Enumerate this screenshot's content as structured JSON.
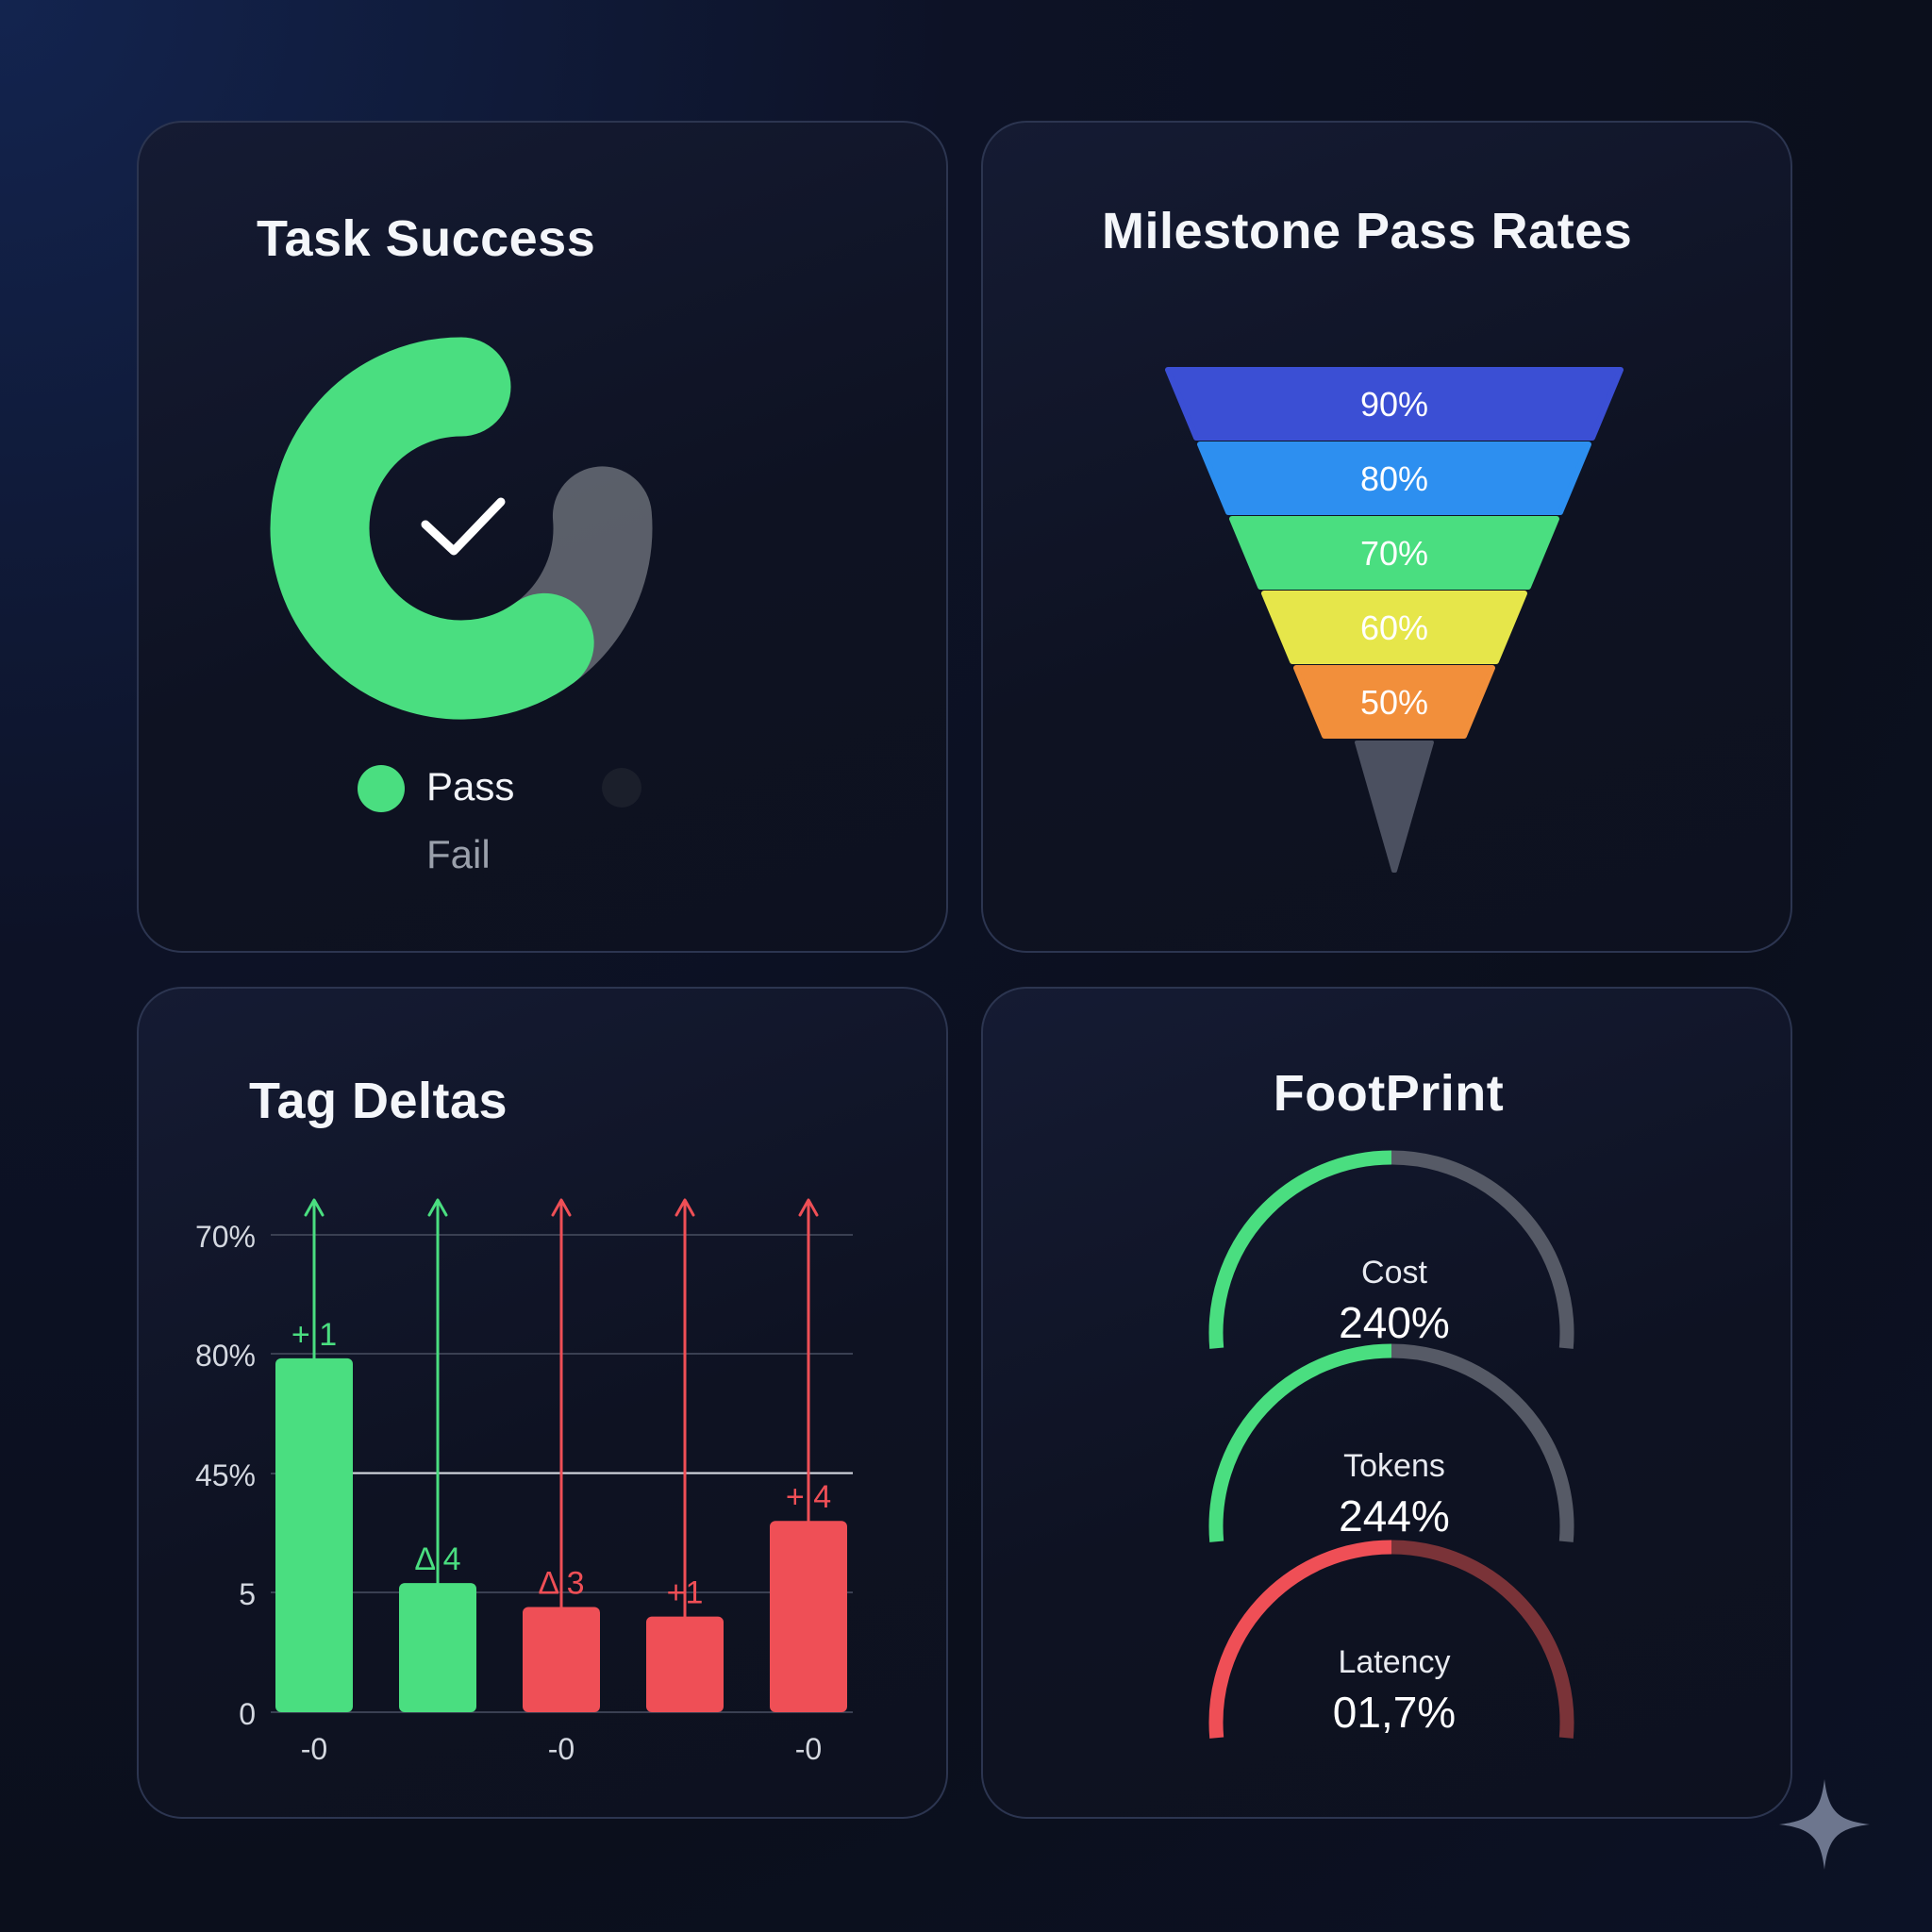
{
  "task_success": {
    "title": "Task Success",
    "legend": [
      {
        "label": "Pass",
        "color": "#4ade80"
      },
      {
        "label": "Fail",
        "color": "#6b7080"
      }
    ],
    "center_icon": "checkmark-icon"
  },
  "milestones": {
    "title": "Milestone Pass Rates"
  },
  "tag_deltas": {
    "title": "Tag Deltas"
  },
  "footprint": {
    "title": "FootPrint",
    "gauges": [
      {
        "label": "Cost",
        "value": "240%",
        "color": "#4ade80",
        "track": "#565a66"
      },
      {
        "label": "Tokens",
        "value": "244%",
        "color": "#4ade80",
        "track": "#565a66"
      },
      {
        "label": "Latency",
        "value": "01,7%",
        "color": "#ef4f56",
        "track": "#7a3338"
      }
    ]
  },
  "chart_data": [
    {
      "type": "pie",
      "title": "Task Success",
      "categories": [
        "Pass",
        "Fail"
      ],
      "values": [
        60,
        40
      ],
      "colors": [
        "#4ade80",
        "#5f636e"
      ]
    },
    {
      "type": "bar",
      "subtype": "funnel",
      "title": "Milestone Pass Rates",
      "values": [
        90,
        80,
        70,
        60,
        50
      ],
      "labels": [
        "90%",
        "80%",
        "70%",
        "60%",
        "50%"
      ],
      "colors": [
        "#3b4fd4",
        "#2d8ff0",
        "#4ade80",
        "#e6e64a",
        "#f28f3b",
        "#4b5060"
      ]
    },
    {
      "type": "bar",
      "title": "Tag Deltas",
      "y_tick_labels": [
        "0",
        "5",
        "45%",
        "80%",
        "70%"
      ],
      "x_tick_labels": [
        "-0",
        "-0",
        "-0"
      ],
      "values": [
        74,
        27,
        22,
        20,
        40
      ],
      "delta_labels": [
        "+ 1",
        "Δ 4",
        "Δ 3",
        "+1",
        "+ 4"
      ],
      "colors": [
        "#4ade80",
        "#4ade80",
        "#ef4f56",
        "#ef4f56",
        "#ef4f56"
      ],
      "ylim": [
        0,
        100
      ],
      "reference_line": 50,
      "grid": true
    },
    {
      "type": "pie",
      "subtype": "gauges",
      "title": "FootPrint",
      "categories": [
        "Cost",
        "Tokens",
        "Latency"
      ],
      "values": [
        50,
        50,
        50
      ],
      "value_labels": [
        "240%",
        "244%",
        "01,7%"
      ]
    }
  ]
}
